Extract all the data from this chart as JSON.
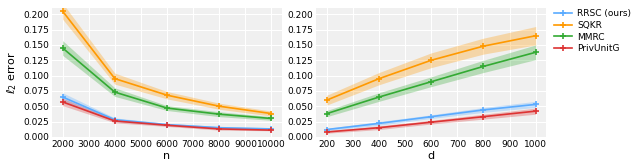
{
  "left": {
    "x": [
      2000,
      4000,
      6000,
      8000,
      10000
    ],
    "RRSC": [
      0.065,
      0.028,
      0.02,
      0.015,
      0.013
    ],
    "RRSC_lo": [
      0.058,
      0.025,
      0.018,
      0.013,
      0.011
    ],
    "RRSC_hi": [
      0.072,
      0.031,
      0.022,
      0.017,
      0.015
    ],
    "SQKR": [
      0.205,
      0.095,
      0.068,
      0.05,
      0.038
    ],
    "SQKR_lo": [
      0.192,
      0.086,
      0.062,
      0.045,
      0.034
    ],
    "SQKR_hi": [
      0.218,
      0.104,
      0.074,
      0.055,
      0.042
    ],
    "MMRC": [
      0.145,
      0.073,
      0.047,
      0.037,
      0.03
    ],
    "MMRC_lo": [
      0.133,
      0.066,
      0.043,
      0.033,
      0.027
    ],
    "MMRC_hi": [
      0.157,
      0.08,
      0.051,
      0.041,
      0.033
    ],
    "PrivUnitG": [
      0.057,
      0.026,
      0.019,
      0.013,
      0.011
    ],
    "PrivUnitG_lo": [
      0.051,
      0.023,
      0.017,
      0.011,
      0.01
    ],
    "PrivUnitG_hi": [
      0.063,
      0.029,
      0.021,
      0.015,
      0.013
    ],
    "xlabel": "n",
    "ylabel": "$\\ell_2$ error",
    "ylim": [
      0.0,
      0.21
    ],
    "yticks": [
      0.0,
      0.025,
      0.05,
      0.075,
      0.1,
      0.125,
      0.15,
      0.175,
      0.2
    ],
    "xticks": [
      2000,
      3000,
      4000,
      5000,
      6000,
      7000,
      8000,
      9000,
      10000
    ]
  },
  "right": {
    "x": [
      200,
      400,
      600,
      800,
      1000
    ],
    "RRSC": [
      0.012,
      0.022,
      0.033,
      0.044,
      0.053
    ],
    "RRSC_lo": [
      0.01,
      0.019,
      0.03,
      0.04,
      0.048
    ],
    "RRSC_hi": [
      0.014,
      0.025,
      0.036,
      0.048,
      0.058
    ],
    "SQKR": [
      0.06,
      0.095,
      0.125,
      0.148,
      0.165
    ],
    "SQKR_lo": [
      0.052,
      0.085,
      0.113,
      0.135,
      0.15
    ],
    "SQKR_hi": [
      0.068,
      0.105,
      0.137,
      0.161,
      0.18
    ],
    "MMRC": [
      0.038,
      0.065,
      0.09,
      0.115,
      0.138
    ],
    "MMRC_lo": [
      0.033,
      0.058,
      0.082,
      0.105,
      0.126
    ],
    "MMRC_hi": [
      0.043,
      0.072,
      0.098,
      0.125,
      0.15
    ],
    "PrivUnitG": [
      0.008,
      0.015,
      0.024,
      0.033,
      0.042
    ],
    "PrivUnitG_lo": [
      0.006,
      0.012,
      0.021,
      0.029,
      0.037
    ],
    "PrivUnitG_hi": [
      0.01,
      0.018,
      0.027,
      0.037,
      0.047
    ],
    "xlabel": "d",
    "ylim": [
      0.0,
      0.21
    ],
    "yticks": [
      0.0,
      0.025,
      0.05,
      0.075,
      0.1,
      0.125,
      0.15,
      0.175,
      0.2
    ],
    "xticks": [
      200,
      300,
      400,
      500,
      600,
      700,
      800,
      900,
      1000
    ]
  },
  "colors": {
    "RRSC": "#5aabff",
    "SQKR": "#ff9900",
    "MMRC": "#33aa33",
    "PrivUnitG": "#dd3333"
  },
  "legend_labels": [
    "RRSC (ours)",
    "SQKR",
    "MMRC",
    "PrivUnitG"
  ],
  "legend_keys": [
    "RRSC",
    "SQKR",
    "MMRC",
    "PrivUnitG"
  ],
  "marker": "+",
  "markersize": 4,
  "linewidth": 1.2,
  "alpha_fill": 0.3,
  "bg_color": "#f0f0f0"
}
